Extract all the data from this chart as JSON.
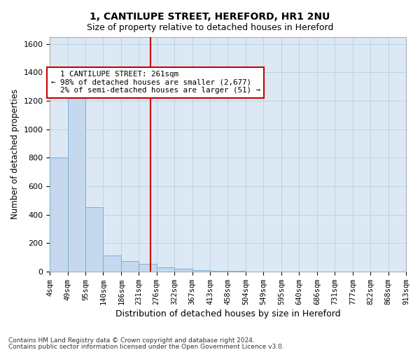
{
  "title1": "1, CANTILUPE STREET, HEREFORD, HR1 2NU",
  "title2": "Size of property relative to detached houses in Hereford",
  "xlabel": "Distribution of detached houses by size in Hereford",
  "ylabel": "Number of detached properties",
  "bin_labels": [
    "4sqm",
    "49sqm",
    "95sqm",
    "140sqm",
    "186sqm",
    "231sqm",
    "276sqm",
    "322sqm",
    "367sqm",
    "413sqm",
    "458sqm",
    "504sqm",
    "549sqm",
    "595sqm",
    "640sqm",
    "686sqm",
    "731sqm",
    "777sqm",
    "822sqm",
    "868sqm",
    "913sqm"
  ],
  "bin_edges": [
    4,
    49,
    95,
    140,
    186,
    231,
    276,
    322,
    367,
    413,
    458,
    504,
    549,
    595,
    640,
    686,
    731,
    777,
    822,
    868,
    913
  ],
  "bar_heights": [
    800,
    1230,
    450,
    110,
    75,
    55,
    30,
    20,
    8,
    5,
    2,
    0,
    0,
    0,
    0,
    0,
    0,
    0,
    0,
    0
  ],
  "bar_color": "#c5d8ed",
  "bar_edgecolor": "#7aafd4",
  "grid_color": "#b8cfe0",
  "bg_color": "#dce9f5",
  "vline_x": 261,
  "vline_color": "#cc0000",
  "annotation_text": "  1 CANTILUPE STREET: 261sqm\n← 98% of detached houses are smaller (2,677)\n  2% of semi-detached houses are larger (51) →",
  "annotation_box_edgecolor": "#cc0000",
  "ylim": [
    0,
    1650
  ],
  "yticks": [
    0,
    200,
    400,
    600,
    800,
    1000,
    1200,
    1400,
    1600
  ],
  "footer1": "Contains HM Land Registry data © Crown copyright and database right 2024.",
  "footer2": "Contains public sector information licensed under the Open Government Licence v3.0."
}
